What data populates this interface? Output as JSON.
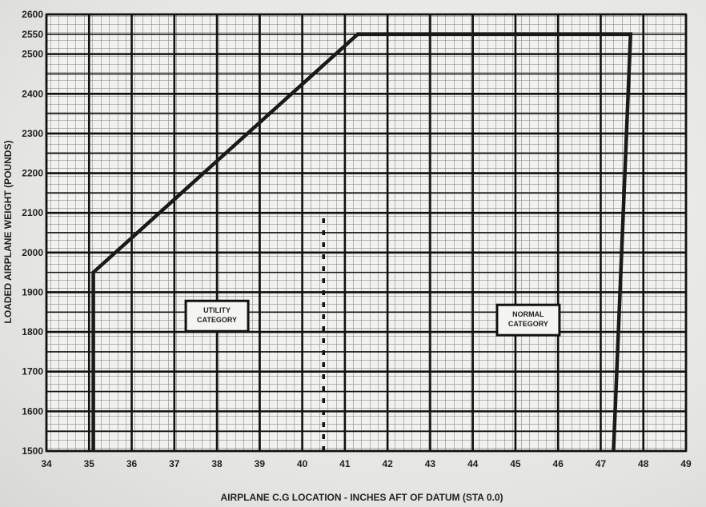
{
  "chart_data": {
    "type": "line",
    "title": "",
    "xlabel": "AIRPLANE C.G LOCATION - INCHES AFT OF DATUM (STA 0.0)",
    "ylabel": "LOADED AIRPLANE WEIGHT (POUNDS)",
    "xlim": [
      34,
      49
    ],
    "ylim": [
      1500,
      2600
    ],
    "x_ticks": [
      "34",
      "35",
      "36",
      "37",
      "38",
      "39",
      "40",
      "41",
      "42",
      "43",
      "44",
      "45",
      "46",
      "47",
      "48",
      "49"
    ],
    "y_ticks": [
      "1500",
      "1600",
      "1700",
      "1800",
      "1900",
      "2000",
      "2100",
      "2200",
      "2300",
      "2400",
      "2500",
      "2550",
      "2600"
    ],
    "grid": true,
    "series": [
      {
        "values": [
          {
            "x": 35.1,
            "y": 1500
          },
          {
            "x": 35.1,
            "y": 1950
          },
          {
            "x": 41.3,
            "y": 2550
          },
          {
            "x": 47.7,
            "y": 2550
          },
          {
            "x": 47.3,
            "y": 1500
          }
        ]
      }
    ],
    "divider": {
      "x": 40.5,
      "y_from": 1500,
      "y_to": 2100
    },
    "annotations": [
      {
        "lines": [
          "UTILITY",
          "CATEGORY"
        ],
        "x": 38.0,
        "y": 1840
      },
      {
        "lines": [
          "NORMAL",
          "CATEGORY"
        ],
        "x": 45.3,
        "y": 1830
      }
    ]
  }
}
